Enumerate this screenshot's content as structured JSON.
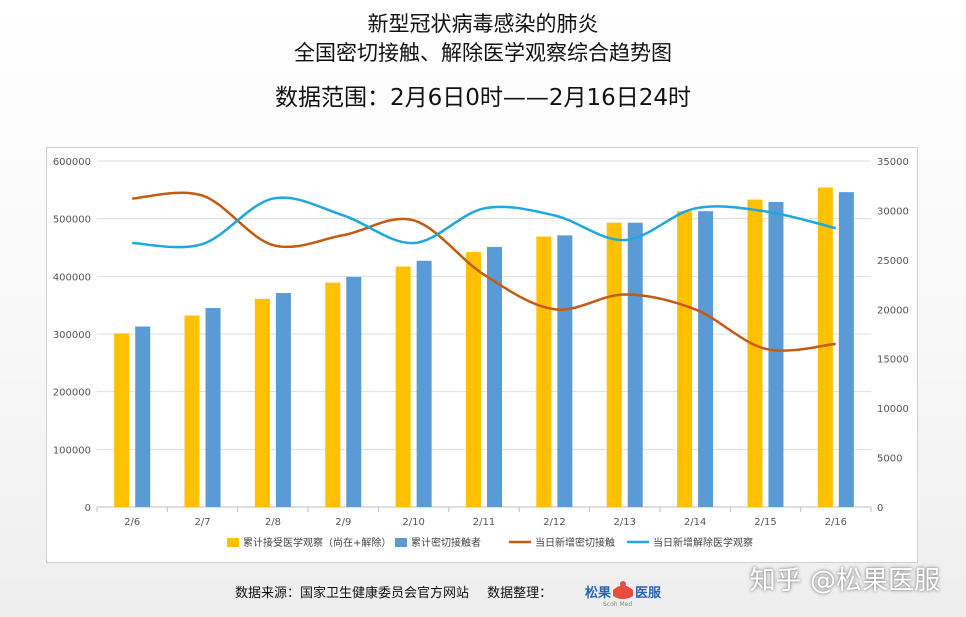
{
  "title_lines": [
    "新型冠状病毒感染的肺炎",
    "全国密切接触、解除医学观察综合趋势图"
  ],
  "subtitle": "数据范围：2月6日0时——2月16日24时",
  "footer": {
    "source": "数据来源：国家卫生健康委员会官方网站",
    "organizer": "数据整理：",
    "logo_text": "松果医服",
    "logo_sub": "Scoh Med"
  },
  "watermark": "知乎 @松果医服",
  "colors": {
    "cumulative_observation": "#FFC000",
    "cumulative_contacts": "#5B9BD5",
    "new_contacts": "#C55A11",
    "new_released": "#1FA8DD"
  },
  "chart_data": {
    "type": "bar",
    "categories": [
      "2/6",
      "2/7",
      "2/8",
      "2/9",
      "2/10",
      "2/11",
      "2/12",
      "2/13",
      "2/14",
      "2/15",
      "2/16"
    ],
    "series": [
      {
        "name": "累计接受医学观察（尚在+解除）",
        "type": "bar",
        "axis": "left",
        "values": [
          301000,
          332000,
          361000,
          389000,
          417000,
          442000,
          469000,
          493000,
          513000,
          533000,
          554000
        ]
      },
      {
        "name": "累计密切接触者",
        "type": "bar",
        "axis": "left",
        "values": [
          313000,
          345000,
          371000,
          399000,
          427000,
          451000,
          471000,
          493000,
          513000,
          529000,
          546000
        ]
      },
      {
        "name": "当日新增密切接触",
        "type": "line",
        "axis": "right",
        "values": [
          31200,
          31500,
          26500,
          27500,
          29000,
          23500,
          20000,
          21500,
          20000,
          16000,
          16500
        ]
      },
      {
        "name": "当日新增解除医学观察",
        "type": "line",
        "axis": "right",
        "values": [
          26700,
          26600,
          31200,
          29500,
          26700,
          30200,
          29500,
          27000,
          30200,
          29900,
          28200
        ]
      }
    ],
    "y_left": {
      "min": 0,
      "max": 600000,
      "ticks": [
        0,
        100000,
        200000,
        300000,
        400000,
        500000,
        600000
      ]
    },
    "y_right": {
      "min": 0,
      "max": 35000,
      "ticks": [
        0,
        5000,
        10000,
        15000,
        20000,
        25000,
        30000,
        35000
      ]
    },
    "grid": true,
    "legend_position": "bottom"
  }
}
